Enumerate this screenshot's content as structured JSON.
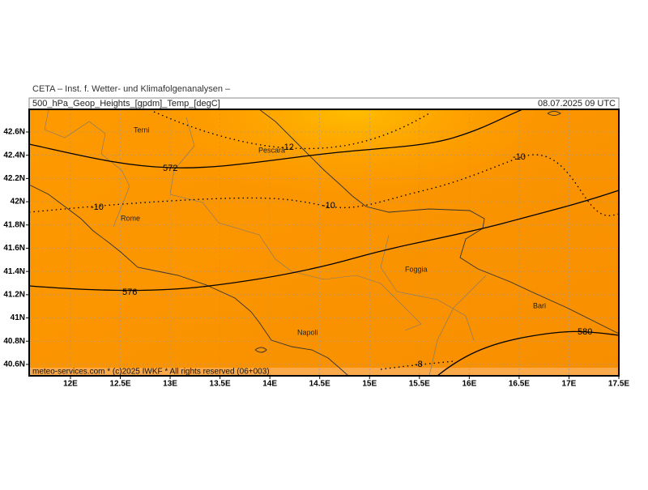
{
  "header": {
    "institute": "CETA – Inst. f. Wetter- und Klimafolgenanalysen –",
    "parameter": "500_hPa_Geop_Heights_[gpdm]_Temp_[degC]",
    "time": "08.07.2025 09 UTC"
  },
  "map": {
    "xlim": [
      11.586,
      17.5
    ],
    "ylim": [
      40.502,
      42.795
    ],
    "xticks": [
      {
        "value": 12,
        "label": "12E"
      },
      {
        "value": 12.5,
        "label": "12.5E"
      },
      {
        "value": 13,
        "label": "13E"
      },
      {
        "value": 13.5,
        "label": "13.5E"
      },
      {
        "value": 14,
        "label": "14E"
      },
      {
        "value": 14.5,
        "label": "14.5E"
      },
      {
        "value": 15,
        "label": "15E"
      },
      {
        "value": 15.5,
        "label": "15.5E"
      },
      {
        "value": 16,
        "label": "16E"
      },
      {
        "value": 16.5,
        "label": "16.5E"
      },
      {
        "value": 17,
        "label": "17E"
      },
      {
        "value": 17.5,
        "label": "17.5E"
      }
    ],
    "yticks": [
      {
        "value": 42.6,
        "label": "42.6N"
      },
      {
        "value": 42.4,
        "label": "42.4N"
      },
      {
        "value": 42.2,
        "label": "42.2N"
      },
      {
        "value": 42,
        "label": "42N"
      },
      {
        "value": 41.8,
        "label": "41.8N"
      },
      {
        "value": 41.6,
        "label": "41.6N"
      },
      {
        "value": 41.4,
        "label": "41.4N"
      },
      {
        "value": 41.2,
        "label": "41.2N"
      },
      {
        "value": 41,
        "label": "41N"
      },
      {
        "value": 40.8,
        "label": "40.8N"
      },
      {
        "value": 40.6,
        "label": "40.6N"
      }
    ],
    "grid": true,
    "cities": [
      "Terni",
      "Pescara",
      "Rome",
      "Foggia",
      "Napoli",
      "Bari"
    ],
    "height_labels": [
      "572",
      "576",
      "580"
    ],
    "temp_labels": [
      "-12",
      "-10",
      "-10",
      "-10",
      "-8"
    ]
  },
  "footer": "meteo-services.com * (c)2025 IWKF * All rights reserved (06+003)"
}
